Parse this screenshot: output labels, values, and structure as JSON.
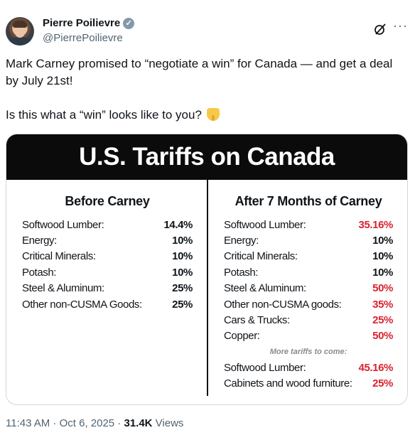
{
  "author": {
    "name": "Pierre Poilievre",
    "handle": "@PierrePoilievre",
    "verified_icon": "verified-badge-icon"
  },
  "tweet": {
    "line1": "Mark Carney promised to “negotiate a win” for Canada — and get a deal by July 21st!",
    "line2": "Is this what a “win” looks like to you?",
    "emoji": "pointing-down-emoji"
  },
  "graphic": {
    "title": "U.S. Tariffs on Canada",
    "before": {
      "heading": "Before Carney",
      "rows": [
        {
          "label": "Softwood Lumber:",
          "value": "14.4%"
        },
        {
          "label": "Energy:",
          "value": "10%"
        },
        {
          "label": "Critical Minerals:",
          "value": "10%"
        },
        {
          "label": "Potash:",
          "value": "10%"
        },
        {
          "label": "Steel & Aluminum:",
          "value": "25%"
        },
        {
          "label": "Other non-CUSMA Goods:",
          "value": "25%"
        }
      ]
    },
    "after": {
      "heading": "After 7 Months of Carney",
      "rows": [
        {
          "label": "Softwood Lumber:",
          "value": "35.16%",
          "red": true
        },
        {
          "label": "Energy:",
          "value": "10%",
          "red": false
        },
        {
          "label": "Critical Minerals:",
          "value": "10%",
          "red": false
        },
        {
          "label": "Potash:",
          "value": "10%",
          "red": false
        },
        {
          "label": "Steel & Aluminum:",
          "value": "50%",
          "red": true
        },
        {
          "label": "Other non-CUSMA goods:",
          "value": "35%",
          "red": true
        },
        {
          "label": "Cars & Trucks:",
          "value": "25%",
          "red": true
        },
        {
          "label": "Copper:",
          "value": "50%",
          "red": true
        }
      ],
      "coming_label": "More tariffs to come:",
      "coming_rows": [
        {
          "label": "Softwood Lumber:",
          "value": "45.16%",
          "red": true
        },
        {
          "label": "Cabinets and wood furniture:",
          "value": "25%",
          "red": true
        }
      ]
    },
    "accent_red": "#d9232f"
  },
  "meta": {
    "time": "11:43 AM · Oct 6, 2025 · ",
    "views_count": "31.4K",
    "views_label": " Views"
  }
}
